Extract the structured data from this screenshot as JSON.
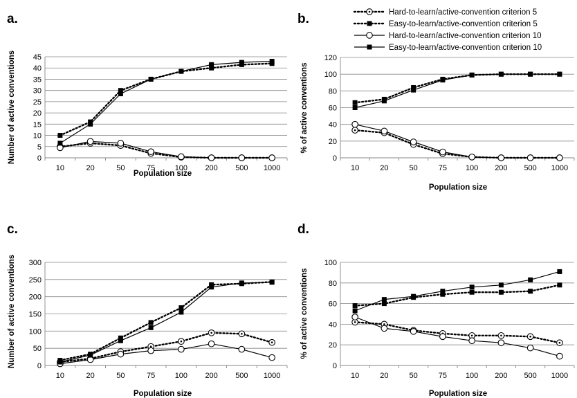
{
  "legend": {
    "items": [
      {
        "label": "Hard-to-learn/active-convention criterion 5",
        "line": "dotted",
        "marker": "circle-dot"
      },
      {
        "label": "Easy-to-learn/active-convention criterion 5",
        "line": "dotted",
        "marker": "square"
      },
      {
        "label": "Hard-to-learn/active-convention criterion 10",
        "line": "solid",
        "marker": "circle"
      },
      {
        "label": "Easy-to-learn/active-convention criterion 10",
        "line": "solid",
        "marker": "square"
      }
    ]
  },
  "chart_data": [
    {
      "panel": "a.",
      "type": "line",
      "categories": [
        "10",
        "20",
        "50",
        "75",
        "100",
        "200",
        "500",
        "1000"
      ],
      "xlabel": "Population size",
      "ylabel": "Number of active conventions",
      "ylim": [
        0,
        45
      ],
      "yticks": [
        0,
        5,
        10,
        15,
        20,
        25,
        30,
        35,
        40,
        45
      ],
      "grid": "horizontal",
      "series": [
        {
          "name": "Hard-to-learn/active-convention criterion 5",
          "values": [
            5,
            6.5,
            5.5,
            2,
            0.3,
            0,
            0,
            0
          ]
        },
        {
          "name": "Easy-to-learn/active-convention criterion 5",
          "values": [
            10,
            16,
            30,
            35,
            38.5,
            40,
            41.5,
            42
          ]
        },
        {
          "name": "Hard-to-learn/active-convention criterion 10",
          "values": [
            4.5,
            7.3,
            6.5,
            2.7,
            0.5,
            0,
            0,
            0
          ]
        },
        {
          "name": "Easy-to-learn/active-convention criterion 10",
          "values": [
            6.5,
            15,
            28.5,
            35,
            38.5,
            41.5,
            42.5,
            43
          ]
        }
      ]
    },
    {
      "panel": "b.",
      "type": "line",
      "categories": [
        "10",
        "20",
        "50",
        "75",
        "100",
        "200",
        "500",
        "1000"
      ],
      "xlabel": "Population size",
      "ylabel": "% of active conventions",
      "ylim": [
        0,
        120
      ],
      "yticks": [
        0,
        20,
        40,
        60,
        80,
        100,
        120
      ],
      "grid": "horizontal",
      "series": [
        {
          "name": "Hard-to-learn/active-convention criterion 5",
          "values": [
            33,
            30,
            16,
            5,
            1,
            0,
            0,
            0
          ]
        },
        {
          "name": "Easy-to-learn/active-convention criterion 5",
          "values": [
            66,
            70,
            84,
            94,
            99,
            100,
            100,
            100
          ]
        },
        {
          "name": "Hard-to-learn/active-convention criterion 10",
          "values": [
            40,
            32,
            19,
            7,
            1,
            0,
            0,
            0
          ]
        },
        {
          "name": "Easy-to-learn/active-convention criterion 10",
          "values": [
            60,
            68,
            81,
            93,
            99,
            100,
            100,
            100
          ]
        }
      ]
    },
    {
      "panel": "c.",
      "type": "line",
      "categories": [
        "10",
        "20",
        "50",
        "75",
        "100",
        "200",
        "500",
        "1000"
      ],
      "xlabel": "Population size",
      "ylabel": "Number of active conventions",
      "ylim": [
        0,
        300
      ],
      "yticks": [
        0,
        50,
        100,
        150,
        200,
        250,
        300
      ],
      "grid": "horizontal",
      "series": [
        {
          "name": "Hard-to-learn/active-convention criterion 5",
          "values": [
            10,
            20,
            40,
            55,
            70,
            95,
            92,
            67
          ]
        },
        {
          "name": "Easy-to-learn/active-convention criterion 5",
          "values": [
            15,
            33,
            80,
            125,
            168,
            235,
            238,
            243
          ]
        },
        {
          "name": "Hard-to-learn/active-convention criterion 10",
          "values": [
            5,
            17,
            33,
            43,
            47,
            63,
            47,
            23
          ]
        },
        {
          "name": "Easy-to-learn/active-convention criterion 10",
          "values": [
            10,
            30,
            72,
            110,
            155,
            228,
            240,
            242
          ]
        }
      ]
    },
    {
      "panel": "d.",
      "type": "line",
      "categories": [
        "10",
        "20",
        "50",
        "75",
        "100",
        "200",
        "500",
        "1000"
      ],
      "xlabel": "Population size",
      "ylabel": "% of active conventions",
      "ylim": [
        0,
        100
      ],
      "yticks": [
        0,
        20,
        40,
        60,
        80,
        100
      ],
      "grid": "horizontal",
      "series": [
        {
          "name": "Hard-to-learn/active-convention criterion 5",
          "values": [
            42,
            40,
            34,
            31,
            29,
            29,
            28,
            22
          ]
        },
        {
          "name": "Easy-to-learn/active-convention criterion 5",
          "values": [
            58,
            60,
            66,
            69,
            71,
            71,
            72,
            78
          ]
        },
        {
          "name": "Hard-to-learn/active-convention criterion 10",
          "values": [
            47,
            36,
            33,
            28,
            24,
            22,
            17,
            9
          ]
        },
        {
          "name": "Easy-to-learn/active-convention criterion 10",
          "values": [
            53,
            64,
            67,
            72,
            76,
            78,
            83,
            91
          ]
        }
      ]
    }
  ]
}
